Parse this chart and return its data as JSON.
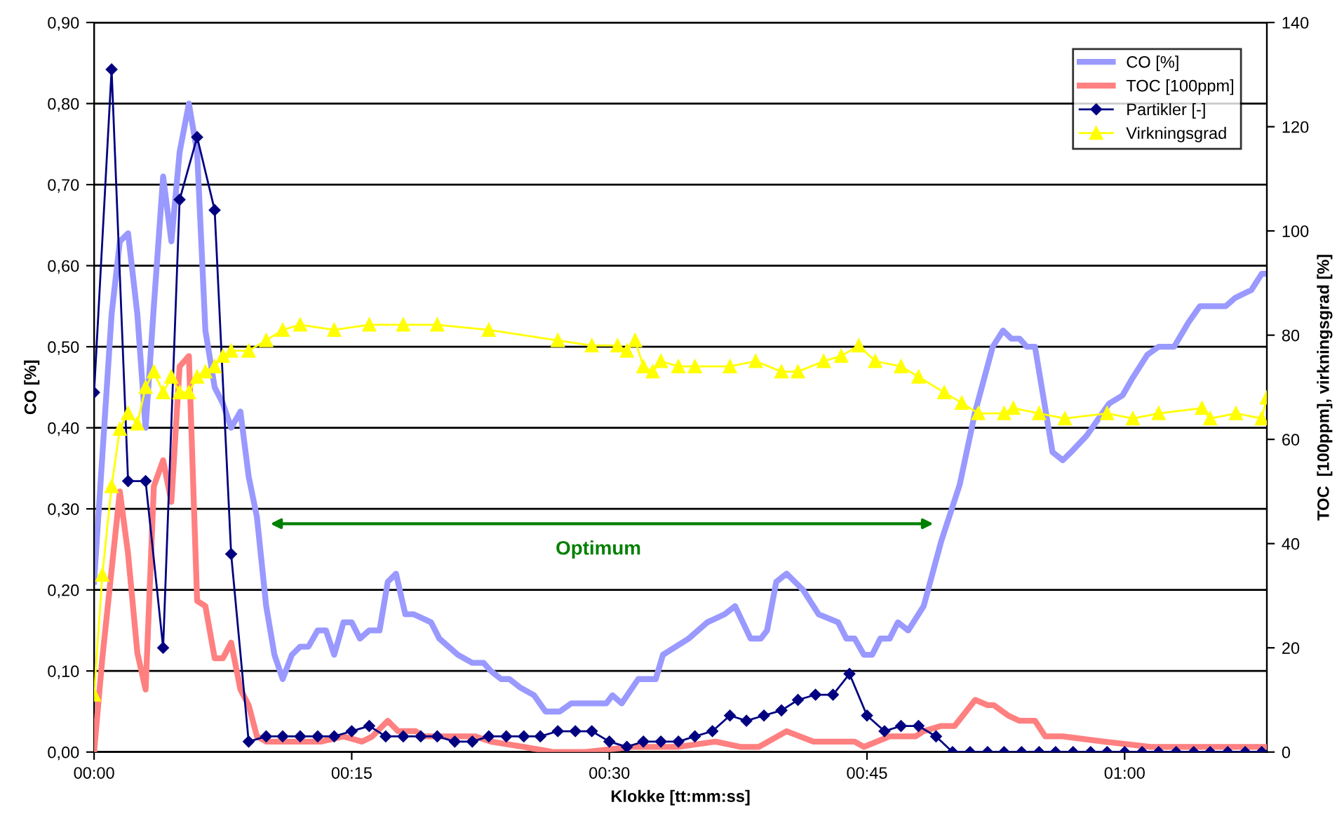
{
  "chart_data": {
    "type": "line",
    "xlabel": "Klokke [tt:mm:ss]",
    "ylabel": "CO [%]",
    "y2label": "TOC  [100ppm], virkningsgrad [%]",
    "xlim": [
      0,
      1.138
    ],
    "xticks": [
      {
        "value": 0,
        "label": "00:00"
      },
      {
        "value": 0.25,
        "label": "00:15"
      },
      {
        "value": 0.5,
        "label": "00:30"
      },
      {
        "value": 0.75,
        "label": "00:45"
      },
      {
        "value": 1.0,
        "label": "01:00"
      }
    ],
    "ylim": [
      0,
      0.9
    ],
    "yticks": [
      {
        "value": 0,
        "label": "0,00"
      },
      {
        "value": 0.1,
        "label": "0,10"
      },
      {
        "value": 0.2,
        "label": "0,20"
      },
      {
        "value": 0.3,
        "label": "0,30"
      },
      {
        "value": 0.4,
        "label": "0,40"
      },
      {
        "value": 0.5,
        "label": "0,50"
      },
      {
        "value": 0.6,
        "label": "0,60"
      },
      {
        "value": 0.7,
        "label": "0,70"
      },
      {
        "value": 0.8,
        "label": "0,80"
      },
      {
        "value": 0.9,
        "label": "0,90"
      }
    ],
    "y2lim": [
      0,
      140
    ],
    "y2ticks": [
      0,
      20,
      40,
      60,
      80,
      100,
      120,
      140
    ],
    "grid": "y",
    "legend": "top right",
    "annotations": [
      "Optimum"
    ],
    "series": [
      {
        "name": "CO [%]",
        "color": "#9999ff",
        "marker": "none",
        "x": [
          0,
          0.017,
          0.025,
          0.033,
          0.042,
          0.05,
          0.058,
          0.067,
          0.075,
          0.083,
          0.092,
          0.1,
          0.108,
          0.117,
          0.125,
          0.133,
          0.142,
          0.15,
          0.158,
          0.167,
          0.175,
          0.183,
          0.192,
          0.2,
          0.208,
          0.217,
          0.225,
          0.233,
          0.242,
          0.25,
          0.258,
          0.267,
          0.277,
          0.285,
          0.293,
          0.302,
          0.31,
          0.327,
          0.335,
          0.353,
          0.367,
          0.378,
          0.385,
          0.395,
          0.403,
          0.413,
          0.427,
          0.438,
          0.452,
          0.463,
          0.472,
          0.478,
          0.488,
          0.497,
          0.503,
          0.512,
          0.528,
          0.545,
          0.552,
          0.577,
          0.595,
          0.612,
          0.622,
          0.637,
          0.647,
          0.653,
          0.662,
          0.672,
          0.68,
          0.688,
          0.693,
          0.703,
          0.722,
          0.73,
          0.738,
          0.747,
          0.755,
          0.763,
          0.772,
          0.78,
          0.79,
          0.805,
          0.822,
          0.84,
          0.855,
          0.872,
          0.882,
          0.89,
          0.898,
          0.905,
          0.913,
          0.93,
          0.94,
          0.948,
          0.963,
          0.985,
          0.998,
          1.007,
          1.022,
          1.033,
          1.048,
          1.062,
          1.073,
          1.092,
          1.098,
          1.107,
          1.123,
          1.133,
          1.138
        ],
        "values": [
          0.21,
          0.54,
          0.63,
          0.64,
          0.54,
          0.4,
          0.55,
          0.71,
          0.63,
          0.74,
          0.8,
          0.74,
          0.52,
          0.45,
          0.43,
          0.4,
          0.42,
          0.34,
          0.29,
          0.18,
          0.12,
          0.09,
          0.12,
          0.13,
          0.13,
          0.15,
          0.15,
          0.12,
          0.16,
          0.16,
          0.14,
          0.15,
          0.15,
          0.21,
          0.22,
          0.17,
          0.17,
          0.16,
          0.14,
          0.12,
          0.11,
          0.11,
          0.1,
          0.09,
          0.09,
          0.08,
          0.07,
          0.05,
          0.05,
          0.06,
          0.06,
          0.06,
          0.06,
          0.06,
          0.07,
          0.06,
          0.09,
          0.09,
          0.12,
          0.14,
          0.16,
          0.17,
          0.18,
          0.14,
          0.14,
          0.15,
          0.21,
          0.22,
          0.21,
          0.2,
          0.19,
          0.17,
          0.16,
          0.14,
          0.14,
          0.12,
          0.12,
          0.14,
          0.14,
          0.16,
          0.15,
          0.18,
          0.26,
          0.33,
          0.42,
          0.5,
          0.52,
          0.51,
          0.51,
          0.5,
          0.5,
          0.37,
          0.36,
          0.37,
          0.39,
          0.43,
          0.44,
          0.46,
          0.49,
          0.5,
          0.5,
          0.53,
          0.55,
          0.55,
          0.55,
          0.56,
          0.57,
          0.59,
          0.59
        ]
      },
      {
        "name": "TOC [100ppm]",
        "color": "#ff8080",
        "marker": "none",
        "axis": "y2",
        "x": [
          0,
          0.008,
          0.025,
          0.033,
          0.042,
          0.05,
          0.058,
          0.067,
          0.075,
          0.083,
          0.092,
          0.1,
          0.108,
          0.117,
          0.125,
          0.133,
          0.142,
          0.15,
          0.158,
          0.167,
          0.183,
          0.192,
          0.208,
          0.22,
          0.242,
          0.26,
          0.27,
          0.285,
          0.295,
          0.312,
          0.32,
          0.353,
          0.37,
          0.385,
          0.417,
          0.445,
          0.477,
          0.522,
          0.567,
          0.603,
          0.627,
          0.645,
          0.672,
          0.698,
          0.73,
          0.738,
          0.747,
          0.772,
          0.797,
          0.805,
          0.822,
          0.835,
          0.855,
          0.867,
          0.873,
          0.887,
          0.898,
          0.913,
          0.923,
          0.94,
          0.98,
          1.025,
          1.093,
          1.138
        ],
        "values": [
          0,
          18,
          50,
          38,
          19,
          12,
          51,
          56,
          48,
          74,
          76,
          29,
          28,
          18,
          18,
          21,
          12,
          9,
          3,
          2,
          2,
          2,
          2,
          2,
          3,
          2,
          3,
          6,
          4,
          4,
          3,
          3,
          3,
          2,
          1,
          0,
          0,
          1,
          1,
          2,
          1,
          1,
          4,
          2,
          2,
          2,
          1,
          3,
          3,
          4,
          5,
          5,
          10,
          9,
          9,
          7,
          6,
          6,
          3,
          3,
          2,
          1,
          1,
          1
        ]
      },
      {
        "name": "Partikler [-]",
        "color": "#000080",
        "marker": "diamond",
        "axis": "y2",
        "x": [
          0,
          0.017,
          0.033,
          0.05,
          0.067,
          0.083,
          0.1,
          0.117,
          0.133,
          0.15,
          0.167,
          0.183,
          0.2,
          0.217,
          0.233,
          0.25,
          0.267,
          0.283,
          0.3,
          0.317,
          0.333,
          0.35,
          0.367,
          0.383,
          0.4,
          0.417,
          0.433,
          0.45,
          0.467,
          0.483,
          0.5,
          0.517,
          0.533,
          0.55,
          0.567,
          0.583,
          0.6,
          0.617,
          0.633,
          0.65,
          0.667,
          0.683,
          0.7,
          0.717,
          0.733,
          0.75,
          0.767,
          0.783,
          0.8,
          0.817,
          0.833,
          0.85,
          0.867,
          0.883,
          0.9,
          0.917,
          0.933,
          0.95,
          0.967,
          0.983,
          1.0,
          1.017,
          1.033,
          1.05,
          1.067,
          1.083,
          1.1,
          1.117,
          1.133
        ],
        "values": [
          69,
          131,
          52,
          52,
          20,
          106,
          118,
          104,
          38,
          2,
          3,
          3,
          3,
          3,
          3,
          4,
          5,
          3,
          3,
          3,
          3,
          2,
          2,
          3,
          3,
          3,
          3,
          4,
          4,
          4,
          2,
          1,
          2,
          2,
          2,
          3,
          4,
          7,
          6,
          7,
          8,
          10,
          11,
          11,
          15,
          7,
          4,
          5,
          5,
          3,
          0,
          0,
          0,
          0,
          0,
          0,
          0,
          0,
          0,
          0,
          0,
          0,
          0,
          0,
          0,
          0,
          0,
          0,
          0
        ]
      },
      {
        "name": "Virkningsgrad",
        "color": "#ffff00",
        "marker": "triangle",
        "axis": "y2",
        "x": [
          0,
          0.008,
          0.017,
          0.025,
          0.033,
          0.042,
          0.05,
          0.058,
          0.067,
          0.075,
          0.083,
          0.092,
          0.1,
          0.108,
          0.117,
          0.125,
          0.133,
          0.15,
          0.167,
          0.183,
          0.2,
          0.233,
          0.267,
          0.3,
          0.333,
          0.383,
          0.45,
          0.483,
          0.508,
          0.517,
          0.525,
          0.533,
          0.542,
          0.55,
          0.567,
          0.583,
          0.617,
          0.642,
          0.667,
          0.683,
          0.708,
          0.725,
          0.742,
          0.758,
          0.783,
          0.8,
          0.825,
          0.842,
          0.858,
          0.883,
          0.892,
          0.917,
          0.942,
          0.983,
          1.008,
          1.033,
          1.075,
          1.083,
          1.108,
          1.133,
          1.138
        ],
        "values": [
          11,
          34,
          51,
          62,
          65,
          63,
          70,
          73,
          69,
          72,
          69,
          69,
          72,
          73,
          74,
          76,
          77,
          77,
          79,
          81,
          82,
          81,
          82,
          82,
          82,
          81,
          79,
          78,
          78,
          77,
          79,
          74,
          73,
          75,
          74,
          74,
          74,
          75,
          73,
          73,
          75,
          76,
          78,
          75,
          74,
          72,
          69,
          67,
          65,
          65,
          66,
          65,
          64,
          65,
          64,
          65,
          66,
          64,
          65,
          64,
          68
        ]
      }
    ]
  }
}
